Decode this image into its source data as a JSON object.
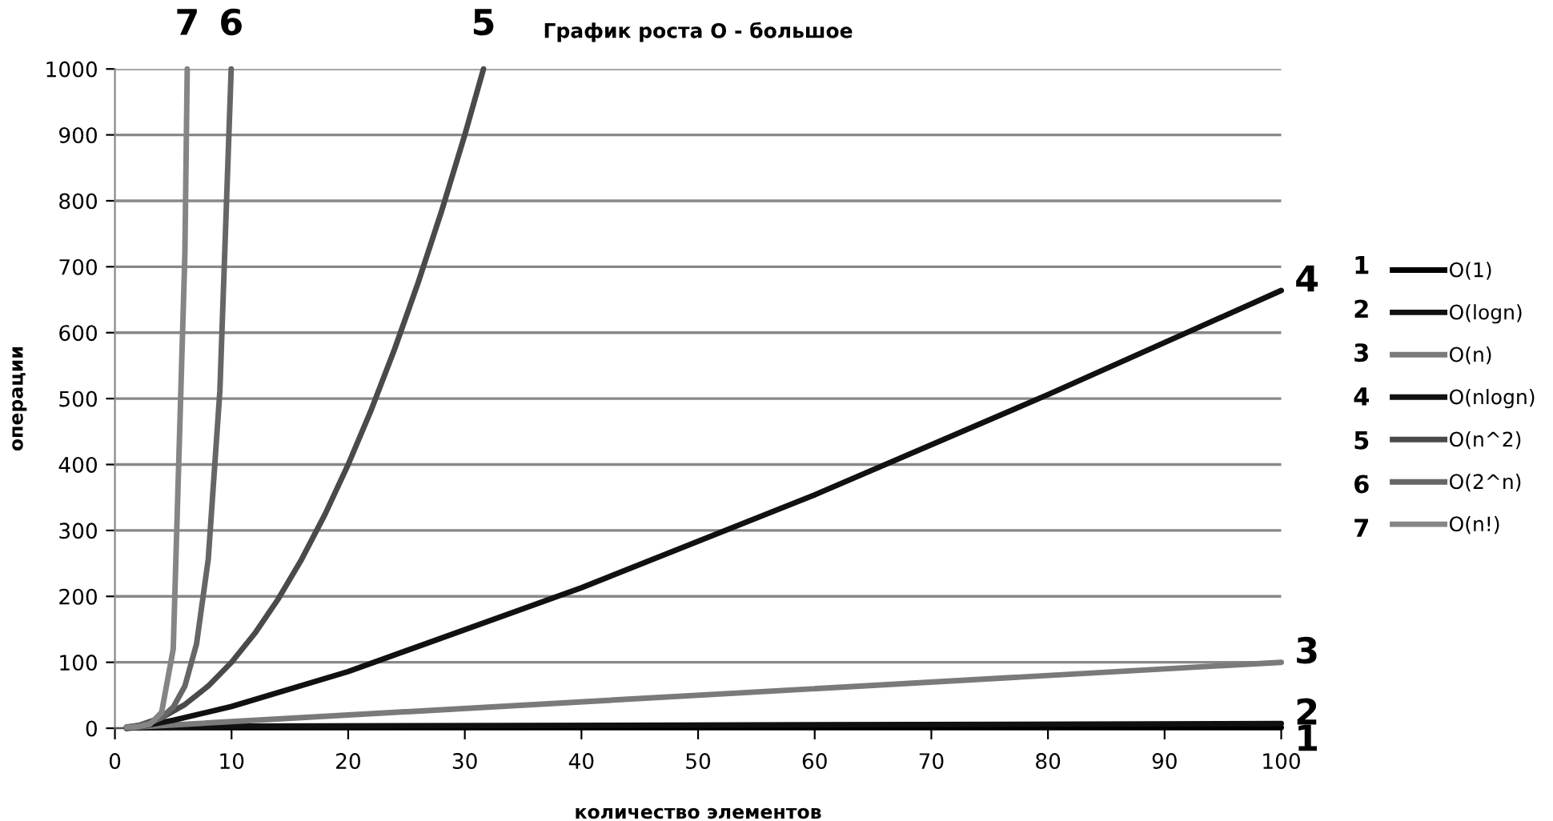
{
  "chart_data": {
    "type": "line",
    "title": "График роста O - большое",
    "xlabel": "количество элементов",
    "ylabel": "операции",
    "xlim": [
      0,
      100
    ],
    "xticks": [
      0,
      10,
      20,
      30,
      40,
      50,
      60,
      70,
      80,
      90,
      100
    ],
    "ylim": [
      0,
      1000
    ],
    "yticks": [
      0,
      100,
      200,
      300,
      400,
      500,
      600,
      700,
      800,
      900,
      1000
    ],
    "grid": "y",
    "legend": "right",
    "marker": "none",
    "line_style": "solid",
    "series": [
      {
        "name": "O(1)",
        "color": "#000000",
        "x": [
          1,
          100
        ],
        "values": [
          1,
          1
        ]
      },
      {
        "name": "O(logn)",
        "color": "#101010",
        "x": [
          1,
          2,
          10,
          100
        ],
        "values": [
          0,
          1,
          3,
          7
        ]
      },
      {
        "name": "O(n)",
        "color": "#7a7a7a",
        "x": [
          1,
          100
        ],
        "values": [
          1,
          100
        ]
      },
      {
        "name": "O(nlogn)",
        "color": "#111111",
        "x": [
          1,
          2,
          5,
          10,
          20,
          40,
          60,
          80,
          100
        ],
        "values": [
          0,
          2,
          12,
          33,
          86,
          213,
          354,
          506,
          664
        ]
      },
      {
        "name": "O(n^2)",
        "color": "#4a4a4a",
        "x": [
          1,
          2,
          4,
          6,
          8,
          10,
          12,
          14,
          16,
          18,
          20,
          22,
          24,
          26,
          28,
          30,
          31.6
        ],
        "values": [
          1,
          4,
          16,
          36,
          64,
          100,
          144,
          196,
          256,
          324,
          400,
          484,
          576,
          676,
          784,
          900,
          1000
        ]
      },
      {
        "name": "O(2^n)",
        "color": "#666666",
        "x": [
          1,
          2,
          3,
          4,
          5,
          6,
          7,
          8,
          9,
          9.97
        ],
        "values": [
          2,
          4,
          8,
          16,
          32,
          64,
          128,
          256,
          512,
          1000
        ]
      },
      {
        "name": "O(n!)",
        "color": "#858585",
        "x": [
          1,
          2,
          3,
          4,
          5,
          6,
          6.2
        ],
        "values": [
          1,
          2,
          6,
          24,
          120,
          720,
          1000
        ]
      }
    ],
    "annotations": [
      {
        "text": "1",
        "x": 100,
        "y": 1
      },
      {
        "text": "2",
        "x": 100,
        "y": 7
      },
      {
        "text": "3",
        "x": 100,
        "y": 100
      },
      {
        "text": "4",
        "x": 100,
        "y": 664
      },
      {
        "text": "5",
        "x": 31.6,
        "y": 1000
      },
      {
        "text": "6",
        "x": 9.97,
        "y": 1000
      },
      {
        "text": "7",
        "x": 6.2,
        "y": 1000
      },
      "1",
      "2",
      "3",
      "4",
      "5",
      "6",
      "7"
    ]
  }
}
